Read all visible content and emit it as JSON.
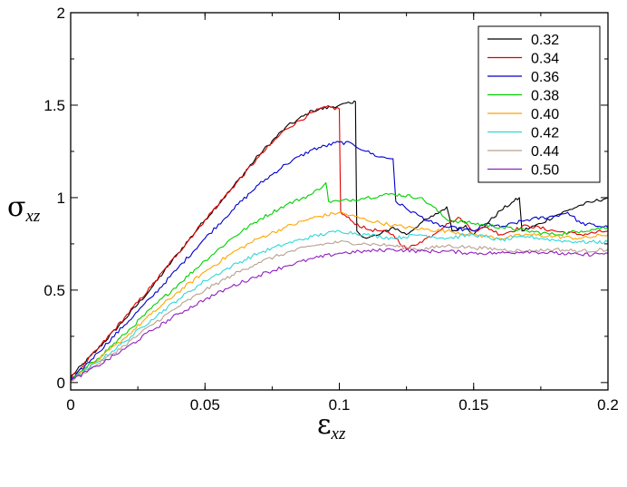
{
  "chart_data": {
    "type": "line",
    "title": "",
    "xlabel": {
      "symbol": "ε",
      "subscript": "xz"
    },
    "ylabel": {
      "symbol": "σ",
      "subscript": "xz"
    },
    "xlim": [
      0,
      0.2
    ],
    "ylim": [
      -0.04,
      2
    ],
    "xticks": [
      0,
      0.05,
      0.1,
      0.15,
      0.2
    ],
    "xtick_labels": [
      "0",
      "0.05",
      "0.1",
      "0.15",
      "0.2"
    ],
    "yticks": [
      0,
      0.5,
      1,
      1.5,
      2
    ],
    "ytick_labels": [
      "0",
      "0.5",
      "1",
      "1.5",
      "2"
    ],
    "grid": false,
    "legend_position": "top-right",
    "series": [
      {
        "name": "0.32",
        "color": "#000000",
        "points": [
          [
            0,
            0.03
          ],
          [
            0.01,
            0.18
          ],
          [
            0.02,
            0.34
          ],
          [
            0.03,
            0.51
          ],
          [
            0.04,
            0.7
          ],
          [
            0.05,
            0.88
          ],
          [
            0.06,
            1.05
          ],
          [
            0.07,
            1.23
          ],
          [
            0.08,
            1.38
          ],
          [
            0.09,
            1.47
          ],
          [
            0.1,
            1.5
          ],
          [
            0.105,
            1.51
          ],
          [
            0.106,
            1.52
          ],
          [
            0.1065,
            0.82
          ],
          [
            0.11,
            0.78
          ],
          [
            0.115,
            0.8
          ],
          [
            0.12,
            0.84
          ],
          [
            0.125,
            0.8
          ],
          [
            0.13,
            0.86
          ],
          [
            0.135,
            0.9
          ],
          [
            0.14,
            0.95
          ],
          [
            0.142,
            0.82
          ],
          [
            0.147,
            0.85
          ],
          [
            0.15,
            0.8
          ],
          [
            0.155,
            0.86
          ],
          [
            0.16,
            0.93
          ],
          [
            0.165,
            0.98
          ],
          [
            0.167,
            1.0
          ],
          [
            0.168,
            0.82
          ],
          [
            0.175,
            0.86
          ],
          [
            0.18,
            0.9
          ],
          [
            0.185,
            0.93
          ],
          [
            0.19,
            0.96
          ],
          [
            0.195,
            0.98
          ],
          [
            0.2,
            1.0
          ]
        ]
      },
      {
        "name": "0.34",
        "color": "#e00000",
        "points": [
          [
            0,
            0.02
          ],
          [
            0.01,
            0.18
          ],
          [
            0.02,
            0.35
          ],
          [
            0.03,
            0.52
          ],
          [
            0.04,
            0.7
          ],
          [
            0.05,
            0.88
          ],
          [
            0.06,
            1.05
          ],
          [
            0.07,
            1.22
          ],
          [
            0.08,
            1.37
          ],
          [
            0.09,
            1.46
          ],
          [
            0.095,
            1.49
          ],
          [
            0.1,
            1.48
          ],
          [
            0.1005,
            0.92
          ],
          [
            0.105,
            0.87
          ],
          [
            0.11,
            0.83
          ],
          [
            0.115,
            0.82
          ],
          [
            0.12,
            0.8
          ],
          [
            0.125,
            0.72
          ],
          [
            0.13,
            0.76
          ],
          [
            0.135,
            0.8
          ],
          [
            0.14,
            0.86
          ],
          [
            0.145,
            0.89
          ],
          [
            0.15,
            0.82
          ],
          [
            0.155,
            0.84
          ],
          [
            0.16,
            0.8
          ],
          [
            0.17,
            0.85
          ],
          [
            0.18,
            0.82
          ],
          [
            0.19,
            0.8
          ],
          [
            0.2,
            0.82
          ]
        ]
      },
      {
        "name": "0.36",
        "color": "#0000cc",
        "points": [
          [
            0,
            0.01
          ],
          [
            0.01,
            0.16
          ],
          [
            0.02,
            0.31
          ],
          [
            0.03,
            0.46
          ],
          [
            0.04,
            0.62
          ],
          [
            0.05,
            0.78
          ],
          [
            0.06,
            0.93
          ],
          [
            0.07,
            1.07
          ],
          [
            0.08,
            1.18
          ],
          [
            0.09,
            1.26
          ],
          [
            0.1,
            1.3
          ],
          [
            0.105,
            1.29
          ],
          [
            0.11,
            1.25
          ],
          [
            0.115,
            1.22
          ],
          [
            0.12,
            1.21
          ],
          [
            0.121,
            0.98
          ],
          [
            0.125,
            0.94
          ],
          [
            0.13,
            0.9
          ],
          [
            0.135,
            0.86
          ],
          [
            0.14,
            0.84
          ],
          [
            0.15,
            0.82
          ],
          [
            0.155,
            0.86
          ],
          [
            0.16,
            0.84
          ],
          [
            0.17,
            0.88
          ],
          [
            0.18,
            0.9
          ],
          [
            0.185,
            0.92
          ],
          [
            0.19,
            0.86
          ],
          [
            0.2,
            0.84
          ]
        ]
      },
      {
        "name": "0.38",
        "color": "#00d000",
        "points": [
          [
            0,
            0.01
          ],
          [
            0.01,
            0.13
          ],
          [
            0.02,
            0.26
          ],
          [
            0.03,
            0.4
          ],
          [
            0.04,
            0.53
          ],
          [
            0.05,
            0.66
          ],
          [
            0.06,
            0.78
          ],
          [
            0.07,
            0.88
          ],
          [
            0.08,
            0.96
          ],
          [
            0.09,
            1.02
          ],
          [
            0.095,
            1.08
          ],
          [
            0.096,
            0.98
          ],
          [
            0.1,
            0.98
          ],
          [
            0.11,
            1.0
          ],
          [
            0.12,
            1.02
          ],
          [
            0.13,
            1.0
          ],
          [
            0.135,
            0.95
          ],
          [
            0.14,
            0.88
          ],
          [
            0.15,
            0.86
          ],
          [
            0.16,
            0.84
          ],
          [
            0.17,
            0.82
          ],
          [
            0.18,
            0.8
          ],
          [
            0.19,
            0.82
          ],
          [
            0.2,
            0.84
          ]
        ]
      },
      {
        "name": "0.40",
        "color": "#ffa500",
        "points": [
          [
            0,
            0.01
          ],
          [
            0.01,
            0.12
          ],
          [
            0.02,
            0.24
          ],
          [
            0.03,
            0.37
          ],
          [
            0.04,
            0.49
          ],
          [
            0.05,
            0.6
          ],
          [
            0.06,
            0.7
          ],
          [
            0.07,
            0.78
          ],
          [
            0.08,
            0.84
          ],
          [
            0.09,
            0.89
          ],
          [
            0.1,
            0.92
          ],
          [
            0.11,
            0.88
          ],
          [
            0.12,
            0.85
          ],
          [
            0.13,
            0.83
          ],
          [
            0.14,
            0.82
          ],
          [
            0.15,
            0.8
          ],
          [
            0.16,
            0.78
          ],
          [
            0.17,
            0.8
          ],
          [
            0.18,
            0.79
          ],
          [
            0.19,
            0.78
          ],
          [
            0.2,
            0.8
          ]
        ]
      },
      {
        "name": "0.42",
        "color": "#30d8d8",
        "points": [
          [
            0,
            0.01
          ],
          [
            0.01,
            0.11
          ],
          [
            0.02,
            0.22
          ],
          [
            0.03,
            0.34
          ],
          [
            0.04,
            0.45
          ],
          [
            0.05,
            0.55
          ],
          [
            0.06,
            0.63
          ],
          [
            0.07,
            0.7
          ],
          [
            0.08,
            0.75
          ],
          [
            0.09,
            0.79
          ],
          [
            0.1,
            0.82
          ],
          [
            0.11,
            0.8
          ],
          [
            0.12,
            0.78
          ],
          [
            0.13,
            0.8
          ],
          [
            0.14,
            0.78
          ],
          [
            0.15,
            0.8
          ],
          [
            0.16,
            0.77
          ],
          [
            0.17,
            0.79
          ],
          [
            0.18,
            0.77
          ],
          [
            0.19,
            0.76
          ],
          [
            0.2,
            0.76
          ]
        ]
      },
      {
        "name": "0.44",
        "color": "#b8a090",
        "points": [
          [
            0,
            0.01
          ],
          [
            0.01,
            0.1
          ],
          [
            0.02,
            0.2
          ],
          [
            0.03,
            0.31
          ],
          [
            0.04,
            0.41
          ],
          [
            0.05,
            0.5
          ],
          [
            0.06,
            0.58
          ],
          [
            0.07,
            0.65
          ],
          [
            0.08,
            0.7
          ],
          [
            0.09,
            0.74
          ],
          [
            0.1,
            0.76
          ],
          [
            0.11,
            0.75
          ],
          [
            0.12,
            0.74
          ],
          [
            0.13,
            0.72
          ],
          [
            0.14,
            0.74
          ],
          [
            0.15,
            0.73
          ],
          [
            0.16,
            0.72
          ],
          [
            0.17,
            0.71
          ],
          [
            0.18,
            0.72
          ],
          [
            0.19,
            0.71
          ],
          [
            0.2,
            0.72
          ]
        ]
      },
      {
        "name": "0.50",
        "color": "#9020c0",
        "points": [
          [
            0,
            0.01
          ],
          [
            0.01,
            0.09
          ],
          [
            0.02,
            0.18
          ],
          [
            0.03,
            0.28
          ],
          [
            0.04,
            0.37
          ],
          [
            0.05,
            0.45
          ],
          [
            0.06,
            0.52
          ],
          [
            0.07,
            0.58
          ],
          [
            0.08,
            0.63
          ],
          [
            0.09,
            0.67
          ],
          [
            0.1,
            0.7
          ],
          [
            0.11,
            0.71
          ],
          [
            0.12,
            0.72
          ],
          [
            0.13,
            0.71
          ],
          [
            0.14,
            0.71
          ],
          [
            0.15,
            0.7
          ],
          [
            0.16,
            0.7
          ],
          [
            0.17,
            0.71
          ],
          [
            0.18,
            0.7
          ],
          [
            0.19,
            0.69
          ],
          [
            0.2,
            0.7
          ]
        ]
      }
    ]
  }
}
